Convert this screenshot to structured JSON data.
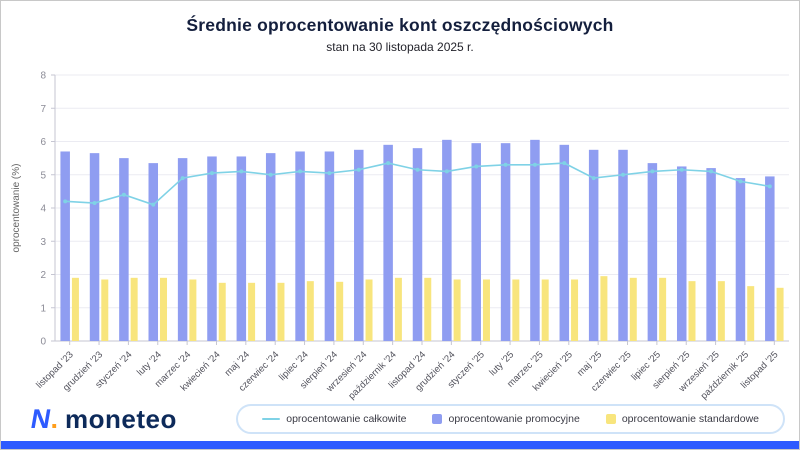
{
  "header": {
    "title": "Średnie oprocentowanie kont oszczędnościowych",
    "subtitle": "stan na 30 listopada 2025 r."
  },
  "brand": {
    "mark": "N",
    "mark_dot": ".",
    "logo_text": "moneteo",
    "mark_color": "#2e5bff",
    "dot_color": "#ff9e1b",
    "text_color": "#0d2a5a"
  },
  "footer": {
    "bar_color": "#2e5bff"
  },
  "chart_data": {
    "type": "bar",
    "title": "Średnie oprocentowanie kont oszczędnościowych",
    "subtitle": "stan na 30 listopada 2025 r.",
    "xlabel": "",
    "ylabel": "oprocentowanie (%)",
    "ylim": [
      0,
      8
    ],
    "yticks": [
      0,
      1,
      2,
      3,
      4,
      5,
      6,
      7,
      8
    ],
    "grid": true,
    "legend_position": "bottom",
    "categories": [
      "listopad '23",
      "grudzień '23",
      "styczeń '24",
      "luty '24",
      "marzec '24",
      "kwiecień '24",
      "maj '24",
      "czerwiec '24",
      "lipiec '24",
      "sierpień '24",
      "wrzesień '24",
      "październik '24",
      "listopad '24",
      "grudzień '24",
      "styczeń '25",
      "luty '25",
      "marzec '25",
      "kwiecień '25",
      "maj '25",
      "czerwiec '25",
      "lipiec '25",
      "sierpień '25",
      "wrzesień '25",
      "październik '25",
      "listopad '25"
    ],
    "series": [
      {
        "name": "oprocentowanie całkowite",
        "type": "line",
        "color": "#7fd2e6",
        "values": [
          4.2,
          4.15,
          4.4,
          4.1,
          4.9,
          5.05,
          5.1,
          5.0,
          5.1,
          5.05,
          5.15,
          5.35,
          5.15,
          5.1,
          5.25,
          5.3,
          5.3,
          5.35,
          4.9,
          5.0,
          5.1,
          5.15,
          5.1,
          4.8,
          4.65
        ]
      },
      {
        "name": "oprocentowanie promocyjne",
        "type": "bar",
        "color": "#8f9df1",
        "values": [
          5.7,
          5.65,
          5.5,
          5.35,
          5.5,
          5.55,
          5.55,
          5.65,
          5.7,
          5.7,
          5.75,
          5.9,
          5.8,
          6.05,
          5.95,
          5.95,
          6.05,
          5.9,
          5.75,
          5.75,
          5.35,
          5.25,
          5.2,
          4.9,
          4.95
        ]
      },
      {
        "name": "oprocentowanie standardowe",
        "type": "bar",
        "color": "#f8e57d",
        "values": [
          1.9,
          1.85,
          1.9,
          1.9,
          1.85,
          1.75,
          1.75,
          1.75,
          1.8,
          1.78,
          1.85,
          1.9,
          1.9,
          1.85,
          1.85,
          1.85,
          1.85,
          1.85,
          1.95,
          1.9,
          1.9,
          1.8,
          1.8,
          1.65,
          1.6
        ]
      }
    ]
  }
}
